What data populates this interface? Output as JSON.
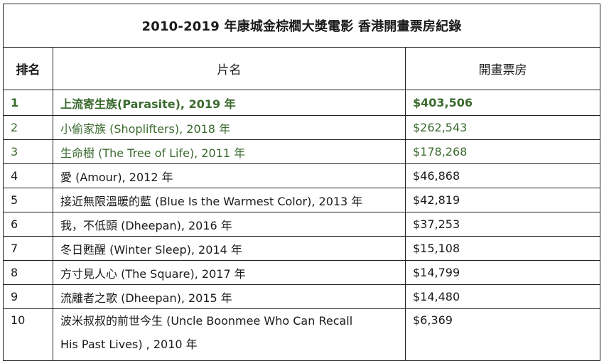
{
  "title": "2010-2019 年康城金棕櫚大獎電影  香港開畫票房紀錄",
  "headers": {
    "rank": "排名",
    "film": "片名",
    "box_office": "開畫票房"
  },
  "rows": [
    {
      "rank": "1",
      "film": "上流寄生族(Parasite), 2019 年",
      "box_office": "$403,506"
    },
    {
      "rank": "2",
      "film": "小偷家族  (Shoplifters), 2018 年",
      "box_office": "$262,543"
    },
    {
      "rank": "3",
      "film": "生命樹  (The Tree of Life), 2011 年",
      "box_office": "$178,268"
    },
    {
      "rank": "4",
      "film": "愛  (Amour), 2012 年",
      "box_office": "$46,868"
    },
    {
      "rank": "5",
      "film": "接近無限溫暖的藍  (Blue Is the Warmest Color), 2013 年",
      "box_office": "$42,819"
    },
    {
      "rank": "6",
      "film": "我，不低頭  (Dheepan), 2016 年",
      "box_office": "$37,253"
    },
    {
      "rank": "7",
      "film": "冬日甦醒  (Winter Sleep), 2014 年",
      "box_office": "$15,108"
    },
    {
      "rank": "8",
      "film": "方寸見人心  (The Square), 2017 年",
      "box_office": "$14,799"
    },
    {
      "rank": "9",
      "film": "流離者之歌  (Dheepan), 2015 年",
      "box_office": "$14,480"
    },
    {
      "rank": "10",
      "film_line1": "波米叔叔的前世今生  (Uncle Boonmee Who Can Recall",
      "film_line2": "His Past Lives) , 2010 年",
      "box_office": "$6,369"
    }
  ],
  "colors": {
    "highlight_green": "#3a6a2e",
    "text": "#1a1a1a",
    "border": "#222222"
  }
}
